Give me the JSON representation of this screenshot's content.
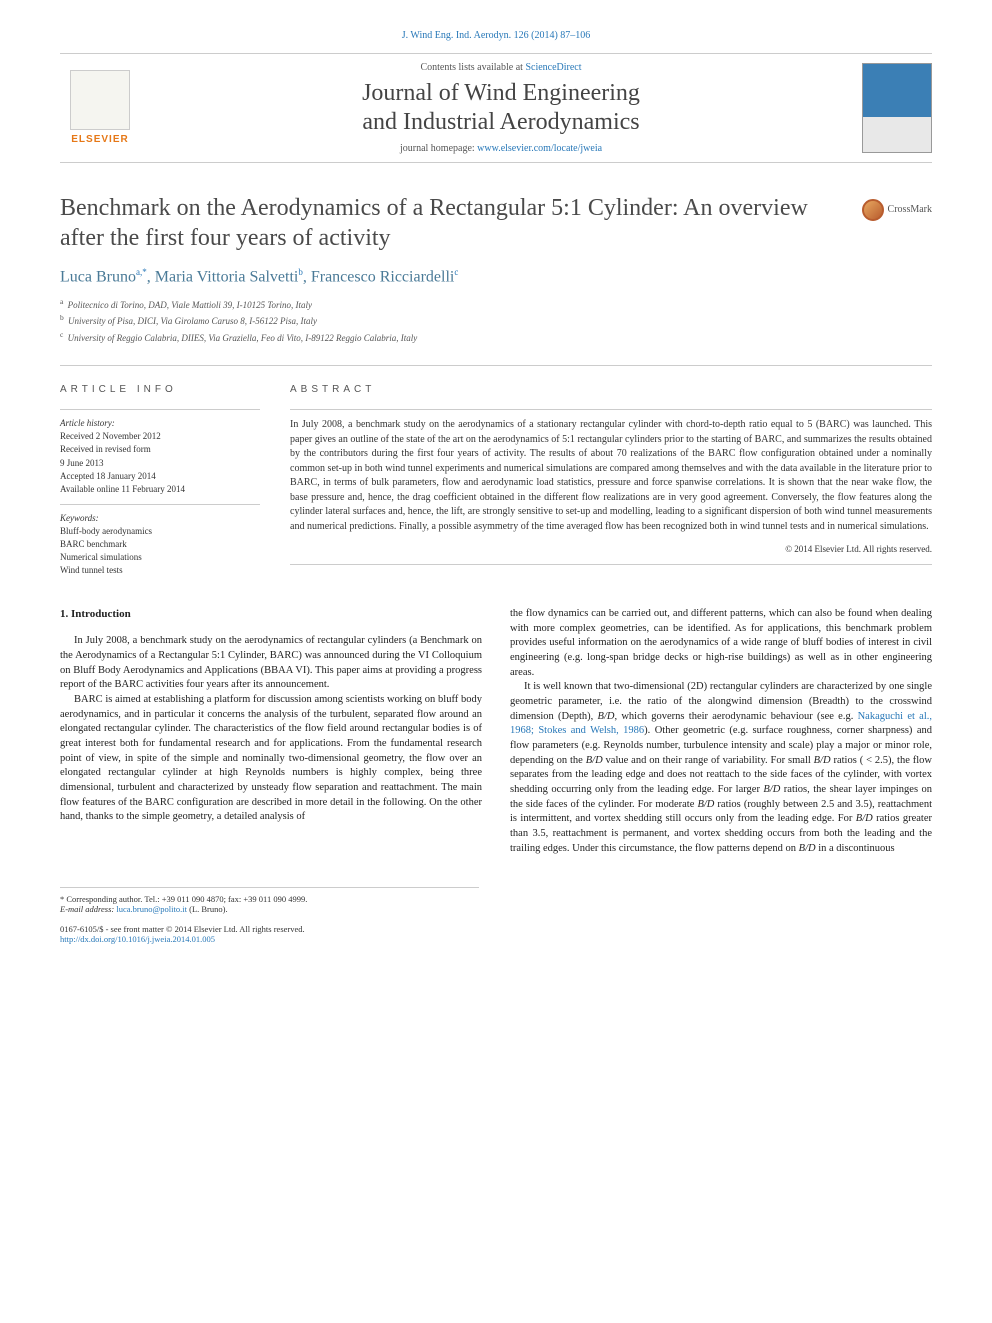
{
  "top_link": "J. Wind Eng. Ind. Aerodyn. 126 (2014) 87–106",
  "header": {
    "contents_prefix": "Contents lists available at ",
    "contents_link": "ScienceDirect",
    "journal_title_line1": "Journal of Wind Engineering",
    "journal_title_line2": "and Industrial Aerodynamics",
    "homepage_prefix": "journal homepage: ",
    "homepage_link": "www.elsevier.com/locate/jweia",
    "elsevier_label": "ELSEVIER"
  },
  "article": {
    "title": "Benchmark on the Aerodynamics of a Rectangular 5:1 Cylinder: An overview after the first four years of activity",
    "crossmark": "CrossMark",
    "authors_html": "Luca Bruno",
    "author1": "Luca Bruno",
    "author1_sup": "a,*",
    "author2": "Maria Vittoria Salvetti",
    "author2_sup": "b",
    "author3": "Francesco Ricciardelli",
    "author3_sup": "c",
    "affiliations": {
      "a": "Politecnico di Torino, DAD, Viale Mattioli 39, I-10125 Torino, Italy",
      "b": "University of Pisa, DICI, Via Girolamo Caruso 8, I-56122 Pisa, Italy",
      "c": "University of Reggio Calabria, DIIES, Via Graziella, Feo di Vito, I-89122 Reggio Calabria, Italy"
    }
  },
  "info": {
    "header": "ARTICLE INFO",
    "history_label": "Article history:",
    "history": "Received 2 November 2012\nReceived in revised form\n9 June 2013\nAccepted 18 January 2014\nAvailable online 11 February 2014",
    "keywords_label": "Keywords:",
    "keywords": "Bluff-body aerodynamics\nBARC benchmark\nNumerical simulations\nWind tunnel tests"
  },
  "abstract": {
    "header": "ABSTRACT",
    "text": "In July 2008, a benchmark study on the aerodynamics of a stationary rectangular cylinder with chord-to-depth ratio equal to 5 (BARC) was launched. This paper gives an outline of the state of the art on the aerodynamics of 5:1 rectangular cylinders prior to the starting of BARC, and summarizes the results obtained by the contributors during the first four years of activity. The results of about 70 realizations of the BARC flow configuration obtained under a nominally common set-up in both wind tunnel experiments and numerical simulations are compared among themselves and with the data available in the literature prior to BARC, in terms of bulk parameters, flow and aerodynamic load statistics, pressure and force spanwise correlations. It is shown that the near wake flow, the base pressure and, hence, the drag coefficient obtained in the different flow realizations are in very good agreement. Conversely, the flow features along the cylinder lateral surfaces and, hence, the lift, are strongly sensitive to set-up and modelling, leading to a significant dispersion of both wind tunnel measurements and numerical predictions. Finally, a possible asymmetry of the time averaged flow has been recognized both in wind tunnel tests and in numerical simulations.",
    "copyright": "© 2014 Elsevier Ltd. All rights reserved."
  },
  "body": {
    "section_heading": "1.  Introduction",
    "col1_p1": "In July 2008, a benchmark study on the aerodynamics of rectangular cylinders (a Benchmark on the Aerodynamics of a Rectangular 5:1 Cylinder, BARC) was announced during the VI Colloquium on Bluff Body Aerodynamics and Applications (BBAA VI). This paper aims at providing a progress report of the BARC activities four years after its announcement.",
    "col1_p2": "BARC is aimed at establishing a platform for discussion among scientists working on bluff body aerodynamics, and in particular it concerns the analysis of the turbulent, separated flow around an elongated rectangular cylinder. The characteristics of the flow field around rectangular bodies is of great interest both for fundamental research and for applications. From the fundamental research point of view, in spite of the simple and nominally two-dimensional geometry, the flow over an elongated rectangular cylinder at high Reynolds numbers is highly complex, being three dimensional, turbulent and characterized by unsteady flow separation and reattachment. The main flow features of the BARC configuration are described in more detail in the following. On the other hand, thanks to the simple geometry, a detailed analysis of",
    "col2_p1": "the flow dynamics can be carried out, and different patterns, which can also be found when dealing with more complex geometries, can be identified. As for applications, this benchmark problem provides useful information on the aerodynamics of a wide range of bluff bodies of interest in civil engineering (e.g. long-span bridge decks or high-rise buildings) as well as in other engineering areas.",
    "col2_p2a": "It is well known that two-dimensional (2D) rectangular cylinders are characterized by one single geometric parameter, i.e. the ratio of the alongwind dimension (Breadth) to the crosswind dimension (Depth), ",
    "col2_p2_bd": "B/D",
    "col2_p2b": ", which governs their aerodynamic behaviour (see e.g. ",
    "col2_p2_ref": "Nakaguchi et al., 1968; Stokes and Welsh, 1986",
    "col2_p2c": "). Other geometric (e.g. surface roughness, corner sharpness) and flow parameters (e.g. Reynolds number, turbulence intensity and scale) play a major or minor role, depending on the ",
    "col2_p2d": " value and on their range of variability. For small ",
    "col2_p2e": " ratios ( < 2.5), the flow separates from the leading edge and does not reattach to the side faces of the cylinder, with vortex shedding occurring only from the leading edge. For larger ",
    "col2_p2f": " ratios, the shear layer impinges on the side faces of the cylinder. For moderate ",
    "col2_p2g": " ratios (roughly between 2.5 and 3.5), reattachment is intermittent, and vortex shedding still occurs only from the leading edge. For ",
    "col2_p2h": " ratios greater than 3.5, reattachment is permanent, and vortex shedding occurs from both the leading and the trailing edges. Under this circumstance, the flow patterns depend on ",
    "col2_p2i": " in a discontinuous"
  },
  "footnotes": {
    "corresponding": "* Corresponding author. Tel.: +39 011 090 4870; fax: +39 011 090 4999.",
    "email_label": "E-mail address: ",
    "email": "luca.bruno@polito.it",
    "email_suffix": " (L. Bruno).",
    "issn_line": "0167-6105/$ - see front matter © 2014 Elsevier Ltd. All rights reserved.",
    "doi": "http://dx.doi.org/10.1016/j.jweia.2014.01.005"
  },
  "colors": {
    "link": "#2878b8",
    "elsevier_orange": "#e67817",
    "author_blue": "#4a7a97",
    "text": "#333333"
  }
}
